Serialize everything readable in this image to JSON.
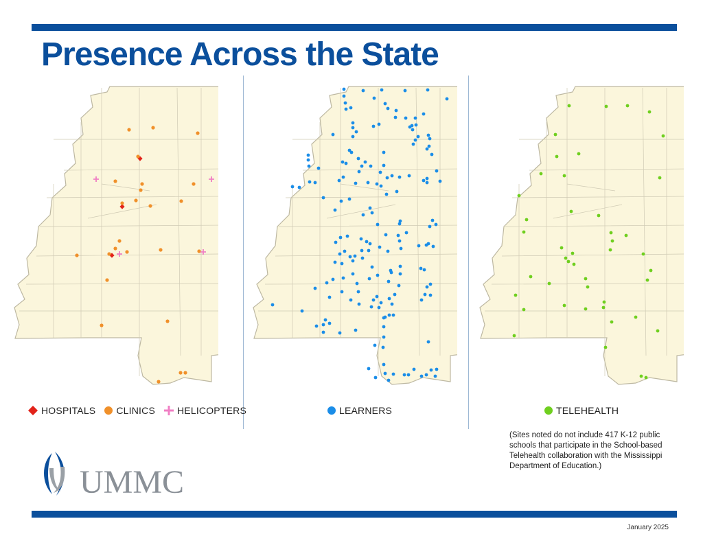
{
  "title": "Presence Across the State",
  "colors": {
    "brand": "#0b4f9c",
    "hospital": "#e2231a",
    "clinic": "#f0902a",
    "helicopter": "#f07fc4",
    "learner": "#1a8de8",
    "telehealth": "#6fcf1f",
    "map_fill": "#fbf6dc"
  },
  "legend": {
    "hospitals": "HOSPITALS",
    "clinics": "CLINICS",
    "helicopters": "HELICOPTERS",
    "learners": "LEARNERS",
    "telehealth": "TELEHEALTH"
  },
  "footnote": "(Sites noted do not include 417 K-12 public schools that participate in the School-based Telehealth collaboration with the Mississippi Department of Education.)",
  "logo": {
    "text": "UMMC",
    "icon": "ummc-logo-icon"
  },
  "date": "January 2025",
  "maps": {
    "hospitals": [
      [
        186,
        113
      ],
      [
        160,
        183
      ],
      [
        145,
        254
      ]
    ],
    "clinics": [
      [
        306,
        22
      ],
      [
        170,
        71
      ],
      [
        205,
        68
      ],
      [
        270,
        76
      ],
      [
        183,
        110
      ],
      [
        150,
        146
      ],
      [
        189,
        150
      ],
      [
        187,
        159
      ],
      [
        264,
        150
      ],
      [
        160,
        178
      ],
      [
        180,
        174
      ],
      [
        201,
        182
      ],
      [
        246,
        175
      ],
      [
        156,
        233
      ],
      [
        141,
        252
      ],
      [
        150,
        244
      ],
      [
        167,
        249
      ],
      [
        216,
        246
      ],
      [
        272,
        248
      ],
      [
        94,
        254
      ],
      [
        138,
        290
      ],
      [
        130,
        356
      ],
      [
        226,
        350
      ],
      [
        252,
        425
      ],
      [
        245,
        425
      ],
      [
        213,
        438
      ]
    ],
    "helicopters": [
      [
        122,
        143
      ],
      [
        290,
        143
      ],
      [
        156,
        252
      ],
      [
        278,
        249
      ]
    ],
    "learners": [
      [
        135,
        12
      ],
      [
        163,
        14
      ],
      [
        190,
        13
      ],
      [
        224,
        14
      ],
      [
        257,
        13
      ],
      [
        135,
        22
      ],
      [
        179,
        25
      ],
      [
        285,
        26
      ],
      [
        137,
        32
      ],
      [
        195,
        33
      ],
      [
        138,
        41
      ],
      [
        145,
        39
      ],
      [
        199,
        40
      ],
      [
        211,
        43
      ],
      [
        210,
        53
      ],
      [
        225,
        54
      ],
      [
        239,
        54
      ],
      [
        251,
        48
      ],
      [
        234,
        65
      ],
      [
        148,
        61
      ],
      [
        153,
        74
      ],
      [
        178,
        66
      ],
      [
        186,
        63
      ],
      [
        231,
        67
      ],
      [
        240,
        64
      ],
      [
        235,
        71
      ],
      [
        148,
        68
      ],
      [
        258,
        79
      ],
      [
        119,
        78
      ],
      [
        148,
        81
      ],
      [
        239,
        86
      ],
      [
        236,
        92
      ],
      [
        260,
        84
      ],
      [
        243,
        81
      ],
      [
        143,
        101
      ],
      [
        193,
        104
      ],
      [
        259,
        95
      ],
      [
        256,
        99
      ],
      [
        263,
        107
      ],
      [
        146,
        104
      ],
      [
        156,
        113
      ],
      [
        133,
        118
      ],
      [
        138,
        120
      ],
      [
        134,
        140
      ],
      [
        152,
        149
      ],
      [
        166,
        118
      ],
      [
        157,
        132
      ],
      [
        188,
        133
      ],
      [
        161,
        124
      ],
      [
        174,
        124
      ],
      [
        270,
        131
      ],
      [
        83,
        108
      ],
      [
        83,
        115
      ],
      [
        98,
        127
      ],
      [
        128,
        145
      ],
      [
        193,
        123
      ],
      [
        84,
        124
      ],
      [
        93,
        148
      ],
      [
        170,
        148
      ],
      [
        183,
        150
      ],
      [
        198,
        141
      ],
      [
        205,
        138
      ],
      [
        216,
        140
      ],
      [
        230,
        138
      ],
      [
        251,
        145
      ],
      [
        256,
        142
      ],
      [
        256,
        148
      ],
      [
        189,
        153
      ],
      [
        197,
        165
      ],
      [
        212,
        161
      ],
      [
        60,
        154
      ],
      [
        70,
        155
      ],
      [
        85,
        147
      ],
      [
        105,
        170
      ],
      [
        122,
        188
      ],
      [
        131,
        175
      ],
      [
        143,
        172
      ],
      [
        176,
        192
      ],
      [
        173,
        185
      ],
      [
        163,
        195
      ],
      [
        217,
        204
      ],
      [
        184,
        209
      ],
      [
        216,
        208
      ],
      [
        226,
        221
      ],
      [
        196,
        224
      ],
      [
        160,
        230
      ],
      [
        168,
        234
      ],
      [
        187,
        242
      ],
      [
        173,
        237
      ],
      [
        216,
        233
      ],
      [
        214,
        225
      ],
      [
        218,
        244
      ],
      [
        244,
        240
      ],
      [
        255,
        239
      ],
      [
        269,
        209
      ],
      [
        264,
        203
      ],
      [
        260,
        212
      ],
      [
        258,
        237
      ],
      [
        265,
        241
      ],
      [
        275,
        146
      ],
      [
        123,
        235
      ],
      [
        130,
        228
      ],
      [
        140,
        226
      ],
      [
        151,
        255
      ],
      [
        161,
        247
      ],
      [
        144,
        256
      ],
      [
        136,
        248
      ],
      [
        129,
        252
      ],
      [
        122,
        264
      ],
      [
        132,
        266
      ],
      [
        148,
        262
      ],
      [
        176,
        271
      ],
      [
        203,
        276
      ],
      [
        154,
        295
      ],
      [
        156,
        307
      ],
      [
        172,
        288
      ],
      [
        184,
        283
      ],
      [
        204,
        279
      ],
      [
        200,
        292
      ],
      [
        209,
        311
      ],
      [
        183,
        314
      ],
      [
        178,
        319
      ],
      [
        157,
        325
      ],
      [
        145,
        319
      ],
      [
        148,
        281
      ],
      [
        134,
        287
      ],
      [
        93,
        302
      ],
      [
        114,
        315
      ],
      [
        132,
        307
      ],
      [
        162,
        258
      ],
      [
        201,
        317
      ],
      [
        205,
        325
      ],
      [
        189,
        323
      ],
      [
        186,
        330
      ],
      [
        175,
        329
      ],
      [
        195,
        344
      ],
      [
        207,
        341
      ],
      [
        215,
        298
      ],
      [
        217,
        281
      ],
      [
        217,
        270
      ],
      [
        171,
        247
      ],
      [
        199,
        248
      ],
      [
        247,
        273
      ],
      [
        252,
        275
      ],
      [
        110,
        294
      ],
      [
        119,
        289
      ],
      [
        105,
        355
      ],
      [
        108,
        348
      ],
      [
        114,
        353
      ],
      [
        261,
        312
      ],
      [
        253,
        311
      ],
      [
        248,
        319
      ],
      [
        256,
        300
      ],
      [
        261,
        296
      ],
      [
        31,
        326
      ],
      [
        74,
        335
      ],
      [
        95,
        357
      ],
      [
        129,
        367
      ],
      [
        105,
        366
      ],
      [
        152,
        363
      ],
      [
        193,
        345
      ],
      [
        201,
        341
      ],
      [
        193,
        358
      ],
      [
        193,
        373
      ],
      [
        192,
        388
      ],
      [
        180,
        385
      ],
      [
        171,
        419
      ],
      [
        193,
        413
      ],
      [
        258,
        380
      ],
      [
        262,
        421
      ],
      [
        237,
        420
      ],
      [
        248,
        430
      ],
      [
        255,
        428
      ],
      [
        268,
        430
      ],
      [
        195,
        426
      ],
      [
        207,
        427
      ],
      [
        200,
        436
      ],
      [
        229,
        428
      ],
      [
        270,
        420
      ],
      [
        181,
        432
      ],
      [
        223,
        428
      ]
    ],
    "telehealth": [
      [
        133,
        36
      ],
      [
        187,
        37
      ],
      [
        218,
        36
      ],
      [
        250,
        45
      ],
      [
        270,
        80
      ],
      [
        113,
        78
      ],
      [
        147,
        106
      ],
      [
        115,
        110
      ],
      [
        92,
        135
      ],
      [
        126,
        138
      ],
      [
        265,
        141
      ],
      [
        60,
        167
      ],
      [
        71,
        202
      ],
      [
        136,
        190
      ],
      [
        176,
        196
      ],
      [
        194,
        221
      ],
      [
        196,
        233
      ],
      [
        216,
        225
      ],
      [
        67,
        220
      ],
      [
        193,
        246
      ],
      [
        122,
        243
      ],
      [
        138,
        251
      ],
      [
        132,
        263
      ],
      [
        128,
        258
      ],
      [
        140,
        267
      ],
      [
        104,
        295
      ],
      [
        157,
        288
      ],
      [
        160,
        300
      ],
      [
        241,
        252
      ],
      [
        252,
        276
      ],
      [
        247,
        290
      ],
      [
        77,
        285
      ],
      [
        55,
        312
      ],
      [
        67,
        333
      ],
      [
        126,
        327
      ],
      [
        157,
        332
      ],
      [
        184,
        322
      ],
      [
        183,
        330
      ],
      [
        195,
        351
      ],
      [
        230,
        344
      ],
      [
        262,
        364
      ],
      [
        53,
        371
      ],
      [
        186,
        388
      ],
      [
        238,
        430
      ],
      [
        245,
        432
      ]
    ]
  }
}
